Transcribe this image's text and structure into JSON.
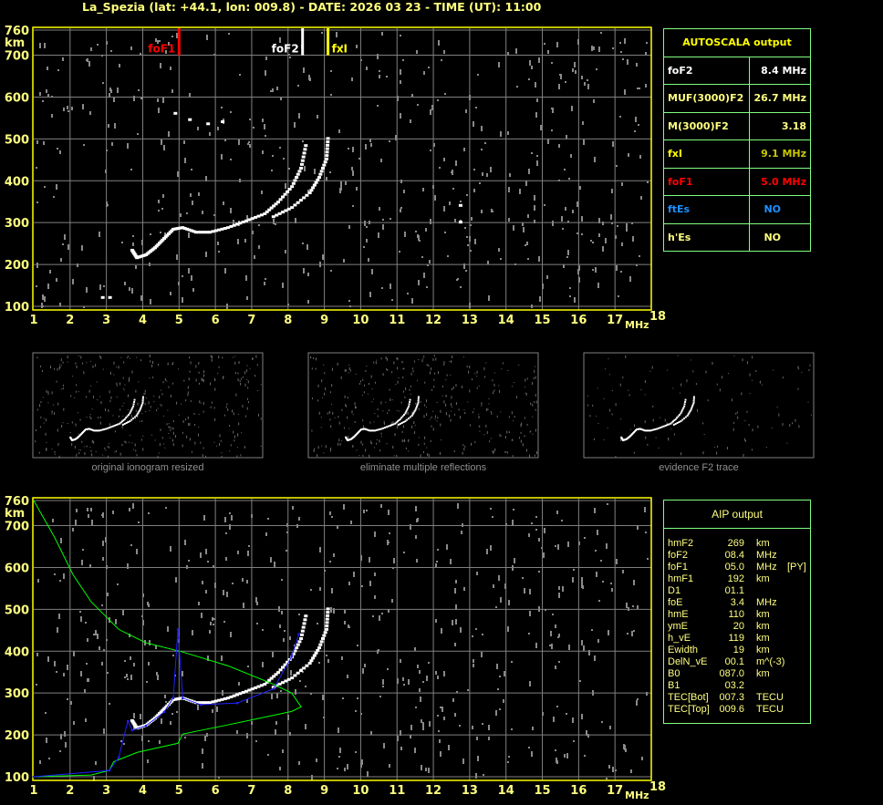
{
  "header": {
    "title": "La_Spezia (lat: +44.1, lon: 009.8) - DATE: 2026 03 23 - TIME (UT): 11:00"
  },
  "colors": {
    "frame": "#ffff00",
    "grid": "#808080",
    "text": "#ffff80",
    "panel_border": "#80ff80",
    "foF1": "#ff0000",
    "foF2": "#ffffff",
    "fxI": "#ffff00",
    "ftEs": "#1e90ff",
    "profile_green": "#00ff00",
    "profile_blue": "#0000ff"
  },
  "chart_data": [
    {
      "type": "scatter",
      "xlabel": "MHz",
      "ylabel": "km",
      "xlim": [
        1,
        18
      ],
      "ylim": [
        100,
        760
      ],
      "grid": true,
      "xticks": [
        "1",
        "2",
        "3",
        "4",
        "5",
        "6",
        "7",
        "8",
        "9",
        "10",
        "11",
        "12",
        "13",
        "14",
        "15",
        "16",
        "17",
        "18"
      ],
      "yticks": [
        "760",
        "700",
        "600",
        "500",
        "400",
        "300",
        "200",
        "100"
      ],
      "markers": [
        {
          "label": "foF1",
          "freq": 5.0,
          "color": "#ff0000"
        },
        {
          "label": "foF2",
          "freq": 8.4,
          "color": "#ffffff"
        },
        {
          "label": "fxI",
          "freq": 9.1,
          "color": "#ffff00"
        }
      ],
      "series": [
        {
          "kind": "o-trace",
          "points": [
            [
              3.71,
              233
            ],
            [
              3.84,
              215
            ],
            [
              4.09,
              222
            ],
            [
              4.34,
              239
            ],
            [
              4.59,
              261
            ],
            [
              4.84,
              283
            ],
            [
              5.1,
              287
            ],
            [
              5.47,
              276
            ],
            [
              5.85,
              276
            ],
            [
              6.35,
              287
            ],
            [
              6.85,
              303
            ],
            [
              7.36,
              320
            ],
            [
              7.73,
              348
            ],
            [
              8.11,
              385
            ],
            [
              8.36,
              429
            ],
            [
              8.49,
              483
            ]
          ]
        },
        {
          "kind": "x-trace",
          "points": [
            [
              7.6,
              313
            ],
            [
              8.11,
              335
            ],
            [
              8.6,
              370
            ],
            [
              8.86,
              407
            ],
            [
              9.06,
              451
            ],
            [
              9.1,
              500
            ]
          ]
        },
        {
          "kind": "echo",
          "points": [
            [
              2.9,
              120
            ],
            [
              3.1,
              120
            ],
            [
              4.9,
              560
            ],
            [
              5.3,
              545
            ],
            [
              5.8,
              535
            ],
            [
              6.2,
              540
            ],
            [
              12.75,
              340
            ],
            [
              12.75,
              300
            ]
          ]
        }
      ]
    },
    {
      "type": "line",
      "xlabel": "MHz",
      "ylabel": "km",
      "xlim": [
        1,
        18
      ],
      "ylim": [
        100,
        760
      ],
      "grid": true,
      "xticks": [
        "1",
        "2",
        "3",
        "4",
        "5",
        "6",
        "7",
        "8",
        "9",
        "10",
        "11",
        "12",
        "13",
        "14",
        "15",
        "16",
        "17",
        "18"
      ],
      "yticks": [
        "760",
        "700",
        "600",
        "500",
        "400",
        "300",
        "200",
        "100"
      ],
      "series": [
        {
          "kind": "o-trace",
          "color": "#ffffff",
          "points": [
            [
              3.71,
              233
            ],
            [
              3.84,
              215
            ],
            [
              4.09,
              222
            ],
            [
              4.34,
              239
            ],
            [
              4.59,
              261
            ],
            [
              4.84,
              283
            ],
            [
              5.1,
              287
            ],
            [
              5.47,
              276
            ],
            [
              5.85,
              276
            ],
            [
              6.35,
              287
            ],
            [
              6.85,
              303
            ],
            [
              7.36,
              320
            ],
            [
              7.73,
              348
            ],
            [
              8.11,
              385
            ],
            [
              8.36,
              429
            ],
            [
              8.49,
              483
            ]
          ]
        },
        {
          "kind": "x-trace",
          "color": "#ffffff",
          "points": [
            [
              7.6,
              313
            ],
            [
              8.11,
              335
            ],
            [
              8.6,
              370
            ],
            [
              8.86,
              407
            ],
            [
              9.06,
              451
            ],
            [
              9.1,
              500
            ]
          ]
        },
        {
          "kind": "green-profile",
          "color": "#00ff00",
          "points": [
            [
              1,
              760
            ],
            [
              1.58,
              671
            ],
            [
              2.08,
              583
            ],
            [
              2.58,
              518
            ],
            [
              3.34,
              452
            ],
            [
              4.09,
              420
            ],
            [
              5.1,
              398
            ],
            [
              6.35,
              365
            ],
            [
              7.6,
              321
            ],
            [
              8.1,
              300
            ],
            [
              8.36,
              267
            ],
            [
              8.1,
              256
            ],
            [
              6.35,
              224
            ],
            [
              5.1,
              202
            ],
            [
              4.97,
              180
            ],
            [
              3.84,
              158
            ],
            [
              3.2,
              136
            ],
            [
              3.08,
              115
            ],
            [
              2.58,
              104
            ],
            [
              1,
              100
            ]
          ]
        },
        {
          "kind": "blue-profile",
          "color": "#2020ff",
          "points": [
            [
              1,
              100
            ],
            [
              3.08,
              115
            ],
            [
              3.34,
              146
            ],
            [
              3.59,
              233
            ],
            [
              3.71,
              211
            ],
            [
              4.09,
              222
            ],
            [
              4.59,
              255
            ],
            [
              4.84,
              288
            ],
            [
              4.97,
              452
            ],
            [
              5.1,
              288
            ],
            [
              5.6,
              272
            ],
            [
              6.6,
              276
            ],
            [
              7.6,
              310
            ],
            [
              8.1,
              387
            ],
            [
              8.3,
              441
            ]
          ]
        }
      ]
    }
  ],
  "thumbnails": [
    {
      "caption": "original ionogram resized"
    },
    {
      "caption": "eliminate multiple reflections"
    },
    {
      "caption": "evidence F2 trace"
    }
  ],
  "autoscala": {
    "title": "AUTOSCALA output",
    "rows": [
      {
        "label": "foF2",
        "value": "8.4 MHz",
        "color": "#ffffff"
      },
      {
        "label": "MUF(3000)F2",
        "value": "26.7 MHz",
        "color": "#ffff80"
      },
      {
        "label": "M(3000)F2",
        "value": "3.18",
        "color": "#ffff80"
      },
      {
        "label": "fxI",
        "value": "9.1 MHz",
        "color": "#ffff00",
        "value_color": "#c8c800"
      },
      {
        "label": "foF1",
        "value": "5.0 MHz",
        "color": "#ff0000"
      },
      {
        "label": "ftEs",
        "value": "NO",
        "color": "#1e90ff"
      },
      {
        "label": "h'Es",
        "value": "NO",
        "color": "#ffff80"
      }
    ]
  },
  "aip": {
    "title": "AIP output",
    "rows": [
      {
        "k": "hmF2",
        "v": "269",
        "u": "km",
        "f": ""
      },
      {
        "k": "foF2",
        "v": "08.4",
        "u": "MHz",
        "f": ""
      },
      {
        "k": "foF1",
        "v": "05.0",
        "u": "MHz",
        "f": "[PY]"
      },
      {
        "k": "hmF1",
        "v": "192",
        "u": "km",
        "f": ""
      },
      {
        "k": "D1",
        "v": "01.1",
        "u": "",
        "f": ""
      },
      {
        "k": "foE",
        "v": "3.4",
        "u": "MHz",
        "f": ""
      },
      {
        "k": "hmE",
        "v": "110",
        "u": "km",
        "f": ""
      },
      {
        "k": "ymE",
        "v": "20",
        "u": "km",
        "f": ""
      },
      {
        "k": "h_vE",
        "v": "119",
        "u": "km",
        "f": ""
      },
      {
        "k": "Ewidth",
        "v": "19",
        "u": "km",
        "f": ""
      },
      {
        "k": "DelN_vE",
        "v": "00.1",
        "u": "m^(-3)",
        "f": ""
      },
      {
        "k": "B0",
        "v": "087.0",
        "u": "km",
        "f": ""
      },
      {
        "k": "B1",
        "v": "03.2",
        "u": "",
        "f": ""
      },
      {
        "k": "TEC[Bot]",
        "v": "007.3",
        "u": "TECU",
        "f": ""
      },
      {
        "k": "TEC[Top]",
        "v": "009.6",
        "u": "TECU",
        "f": ""
      }
    ]
  }
}
